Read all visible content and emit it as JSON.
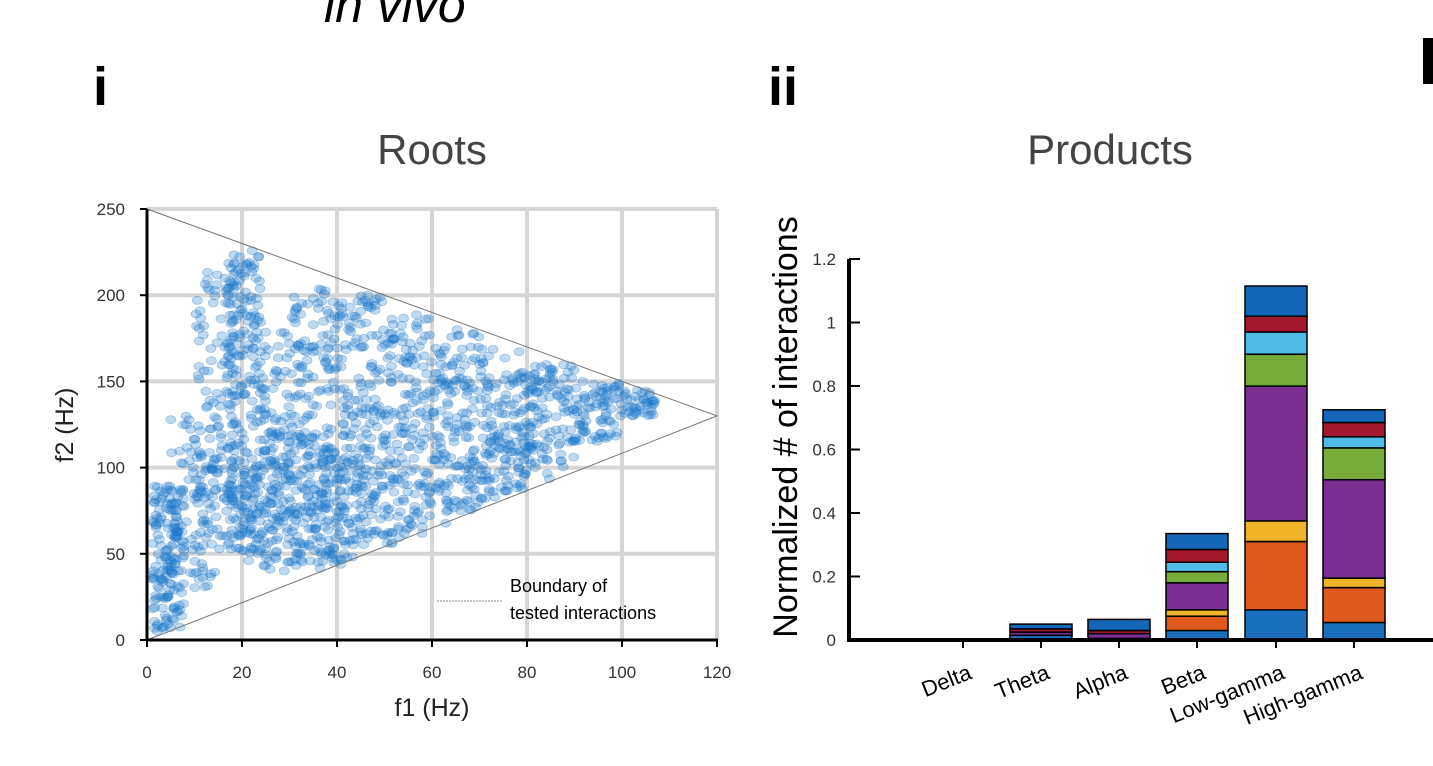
{
  "header": {
    "top_text": "in vivo",
    "panel_i": "i",
    "panel_ii": "ii",
    "panel_next": "I"
  },
  "colors": {
    "scatter": "#1976c8",
    "stack": [
      "#1a6fbd",
      "#e05a1c",
      "#f0b42a",
      "#7b2f93",
      "#78ac3a",
      "#4fbce8",
      "#a3182e",
      "#1467b8"
    ]
  },
  "chart_data": [
    {
      "type": "scatter",
      "title": "Roots",
      "xlabel": "f1 (Hz)",
      "ylabel": "f2 (Hz)",
      "xlim": [
        0,
        120
      ],
      "ylim": [
        0,
        250
      ],
      "xticks": [
        "0",
        "20",
        "40",
        "60",
        "80",
        "100",
        "120"
      ],
      "yticks": [
        "0",
        "50",
        "100",
        "150",
        "200",
        "250"
      ],
      "grid": true,
      "boundary": [
        [
          0,
          0
        ],
        [
          0,
          250
        ],
        [
          120,
          130
        ],
        [
          0,
          0
        ]
      ],
      "legend": {
        "label_line1": "Boundary of",
        "label_line2": "tested interactions"
      },
      "clusters": [
        {
          "x": [
            1,
            8
          ],
          "y": [
            5,
            90
          ],
          "n": 140
        },
        {
          "x": [
            5,
            16
          ],
          "y": [
            30,
            130
          ],
          "n": 110
        },
        {
          "x": [
            10,
            20
          ],
          "y": [
            60,
            215
          ],
          "n": 130
        },
        {
          "x": [
            17,
            24
          ],
          "y": [
            50,
            230
          ],
          "n": 220
        },
        {
          "x": [
            24,
            30
          ],
          "y": [
            55,
            180
          ],
          "n": 110
        },
        {
          "x": [
            30,
            40
          ],
          "y": [
            45,
            205
          ],
          "n": 200
        },
        {
          "x": [
            40,
            50
          ],
          "y": [
            55,
            200
          ],
          "n": 170
        },
        {
          "x": [
            50,
            60
          ],
          "y": [
            55,
            190
          ],
          "n": 150
        },
        {
          "x": [
            60,
            70
          ],
          "y": [
            70,
            180
          ],
          "n": 140
        },
        {
          "x": [
            70,
            80
          ],
          "y": [
            80,
            170
          ],
          "n": 130
        },
        {
          "x": [
            80,
            90
          ],
          "y": [
            100,
            160
          ],
          "n": 110
        },
        {
          "x": [
            90,
            100
          ],
          "y": [
            115,
            150
          ],
          "n": 80
        },
        {
          "x": [
            100,
            107
          ],
          "y": [
            130,
            145
          ],
          "n": 40
        },
        {
          "x": [
            35,
            85
          ],
          "y": [
            60,
            120
          ],
          "n": 160
        },
        {
          "x": [
            20,
            45
          ],
          "y": [
            40,
            110
          ],
          "n": 140
        }
      ]
    },
    {
      "type": "bar",
      "stacked": true,
      "title": "Products",
      "ylabel": "Normalized # of interactions",
      "ylim": [
        0,
        1.2
      ],
      "yticks": [
        "0",
        "0.2",
        "0.4",
        "0.6",
        "0.8",
        "1",
        "1.2"
      ],
      "categories": [
        "Delta",
        "Theta",
        "Alpha",
        "Beta",
        "Low-gamma",
        "High-gamma"
      ],
      "series": [
        {
          "values": [
            0,
            0.015,
            0.005,
            0.03,
            0.095,
            0.055
          ]
        },
        {
          "values": [
            0,
            0.0,
            0.0,
            0.045,
            0.215,
            0.11
          ]
        },
        {
          "values": [
            0,
            0.0,
            0.0,
            0.02,
            0.065,
            0.03
          ]
        },
        {
          "values": [
            0,
            0.01,
            0.015,
            0.085,
            0.425,
            0.31
          ]
        },
        {
          "values": [
            0,
            0.0,
            0.0,
            0.035,
            0.1,
            0.1
          ]
        },
        {
          "values": [
            0,
            0.0,
            0.0,
            0.03,
            0.07,
            0.035
          ]
        },
        {
          "values": [
            0,
            0.01,
            0.01,
            0.04,
            0.05,
            0.045
          ]
        },
        {
          "values": [
            0,
            0.015,
            0.035,
            0.05,
            0.095,
            0.04
          ]
        }
      ]
    }
  ]
}
